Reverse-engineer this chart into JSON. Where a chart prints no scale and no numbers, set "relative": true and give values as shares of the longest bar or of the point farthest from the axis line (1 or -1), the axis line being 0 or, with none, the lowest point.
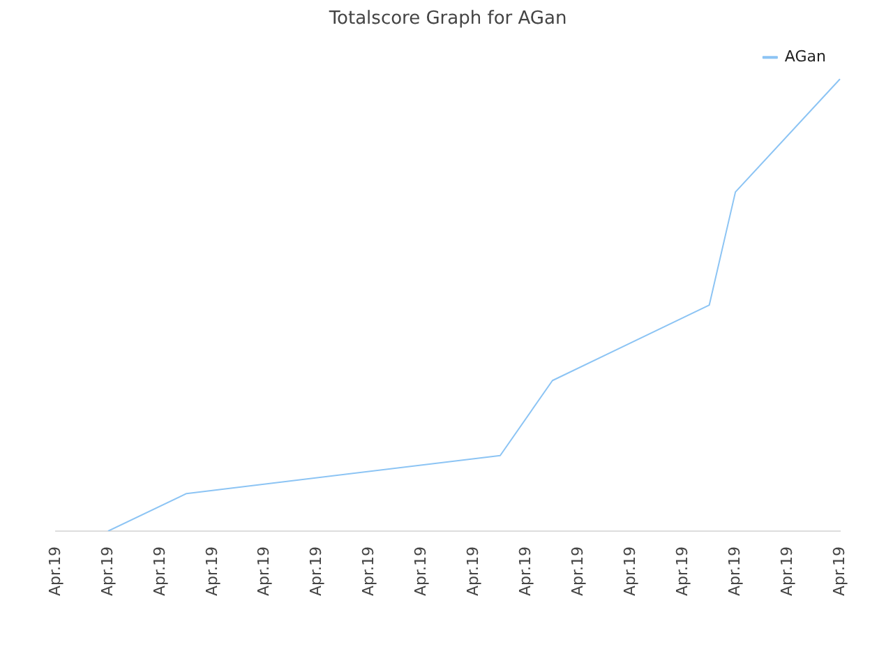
{
  "chart_data": {
    "type": "line",
    "title": "Totalscore Graph for AGan",
    "relative": true,
    "categories": [
      "Apr.19",
      null,
      "Apr.19",
      null,
      "Apr.19",
      null,
      "Apr.19",
      null,
      "Apr.19",
      null,
      "Apr.19",
      null,
      "Apr.19",
      null,
      "Apr.19",
      null,
      "Apr.19",
      null,
      "Apr.19",
      null,
      "Apr.19",
      null,
      "Apr.19",
      null,
      "Apr.19",
      null,
      "Apr.19",
      null,
      "Apr.19",
      null,
      "Apr.19"
    ],
    "series": [
      {
        "name": "AGan",
        "color": "#8cc4f4",
        "values": [
          null,
          null,
          0,
          null,
          null,
          0.083,
          null,
          null,
          null,
          null,
          null,
          null,
          null,
          null,
          null,
          null,
          null,
          0.167,
          null,
          0.333,
          null,
          null,
          null,
          null,
          null,
          0.5,
          0.75,
          null,
          null,
          null,
          1
        ]
      }
    ],
    "legend": "top right",
    "marker": "none",
    "line_style": "solid"
  }
}
